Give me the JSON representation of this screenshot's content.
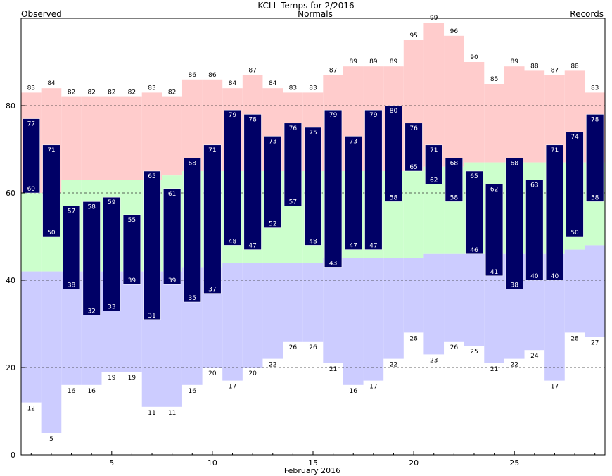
{
  "chart_data": {
    "type": "bar",
    "title": "KCLL Temps for 2/2016",
    "xlabel": "February 2016",
    "ylabel": "",
    "legend": {
      "observed": "Observed",
      "normals": "Normals",
      "records": "Records"
    },
    "colors": {
      "observed": "#000066",
      "normals_text": "#006600",
      "records_text": "#cc66cc",
      "record_high_fill": "#ffcccc",
      "normal_fill": "#ccffcc",
      "record_low_fill": "#ccccff",
      "observed_label": "#ffffff"
    },
    "ylim": [
      0,
      100
    ],
    "yticks": [
      0,
      20,
      40,
      60,
      80
    ],
    "gridlines": [
      20,
      40,
      60,
      80
    ],
    "xticks": [
      5,
      10,
      15,
      20,
      25
    ],
    "days": [
      1,
      2,
      3,
      4,
      5,
      6,
      7,
      8,
      9,
      10,
      11,
      12,
      13,
      14,
      15,
      16,
      17,
      18,
      19,
      20,
      21,
      22,
      23,
      24,
      25,
      26,
      27,
      28,
      29
    ],
    "observed_high": [
      77,
      71,
      57,
      58,
      59,
      55,
      65,
      61,
      68,
      71,
      79,
      78,
      73,
      76,
      75,
      79,
      73,
      79,
      80,
      76,
      71,
      68,
      65,
      62,
      68,
      63,
      71,
      74,
      78
    ],
    "observed_low": [
      60,
      50,
      38,
      32,
      33,
      39,
      31,
      39,
      35,
      37,
      48,
      47,
      52,
      57,
      48,
      43,
      47,
      47,
      58,
      65,
      62,
      58,
      46,
      41,
      38,
      40,
      40,
      50,
      58
    ],
    "record_high": [
      83,
      84,
      82,
      82,
      82,
      82,
      83,
      82,
      86,
      86,
      84,
      87,
      84,
      83,
      83,
      87,
      89,
      89,
      89,
      95,
      99,
      96,
      90,
      85,
      89,
      88,
      87,
      88,
      83
    ],
    "record_low": [
      12,
      5,
      16,
      16,
      19,
      19,
      11,
      11,
      16,
      20,
      17,
      20,
      22,
      26,
      26,
      21,
      16,
      17,
      22,
      28,
      23,
      26,
      25,
      21,
      22,
      24,
      17,
      28,
      27
    ],
    "normal_high": [
      60,
      60,
      63,
      63,
      63,
      63,
      63,
      64,
      65,
      65,
      65,
      65,
      65,
      65,
      65,
      65,
      65,
      65,
      65,
      65,
      66,
      66,
      67,
      67,
      67,
      67,
      67,
      67,
      67
    ],
    "normal_low": [
      42,
      42,
      42,
      42,
      42,
      42,
      42,
      42,
      43,
      43,
      44,
      44,
      44,
      44,
      44,
      45,
      45,
      45,
      45,
      45,
      46,
      46,
      46,
      46,
      46,
      46,
      46,
      47,
      48
    ]
  }
}
